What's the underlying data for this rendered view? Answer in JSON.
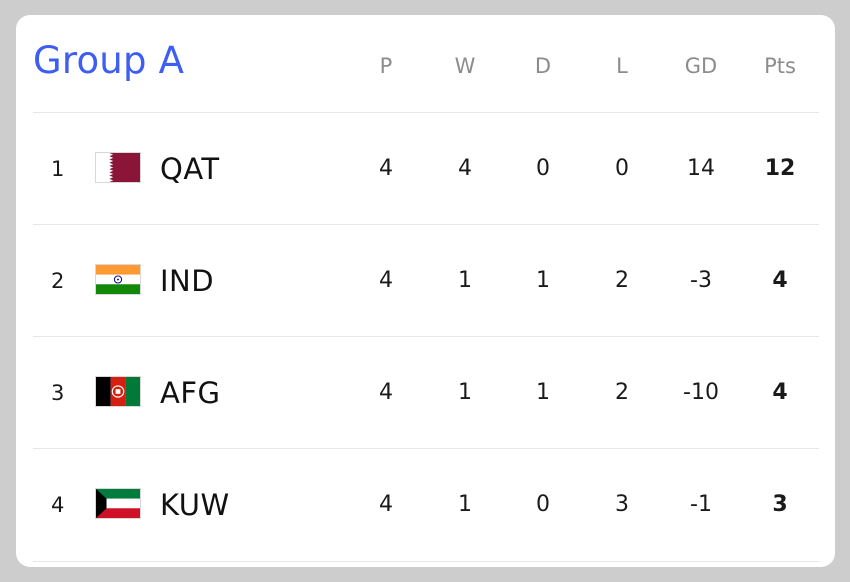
{
  "group_title": "Group A",
  "columns": [
    "P",
    "W",
    "D",
    "L",
    "GD",
    "Pts"
  ],
  "rows": [
    {
      "rank": "1",
      "team": "QAT",
      "flag": "qatar-flag-icon",
      "stats": [
        "4",
        "4",
        "0",
        "0",
        "14"
      ],
      "pts": "12"
    },
    {
      "rank": "2",
      "team": "IND",
      "flag": "india-flag-icon",
      "stats": [
        "4",
        "1",
        "1",
        "2",
        "-3"
      ],
      "pts": "4"
    },
    {
      "rank": "3",
      "team": "AFG",
      "flag": "afghanistan-flag-icon",
      "stats": [
        "4",
        "1",
        "1",
        "2",
        "-10"
      ],
      "pts": "4"
    },
    {
      "rank": "4",
      "team": "KUW",
      "flag": "kuwait-flag-icon",
      "stats": [
        "4",
        "1",
        "0",
        "3",
        "-1"
      ],
      "pts": "3"
    }
  ],
  "colors": {
    "title": "#3d5ef0",
    "header_text": "#8c8c8c",
    "divider": "#e4e6f2",
    "background": "#cdcdcd"
  }
}
